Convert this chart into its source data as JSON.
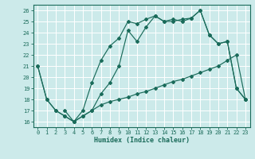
{
  "xlabel": "Humidex (Indice chaleur)",
  "bg_color": "#cceaea",
  "grid_color": "#ffffff",
  "line_color": "#1a6b5a",
  "xlim": [
    -0.5,
    23.5
  ],
  "ylim": [
    15.5,
    26.5
  ],
  "xticks": [
    0,
    1,
    2,
    3,
    4,
    5,
    6,
    7,
    8,
    9,
    10,
    11,
    12,
    13,
    14,
    15,
    16,
    17,
    18,
    19,
    20,
    21,
    22,
    23
  ],
  "yticks": [
    16,
    17,
    18,
    19,
    20,
    21,
    22,
    23,
    24,
    25,
    26
  ],
  "line1_x": [
    0,
    1,
    2,
    3,
    4,
    5,
    6,
    7,
    8,
    9,
    10,
    11,
    12,
    13,
    14,
    15,
    16,
    17,
    18,
    19,
    20,
    21,
    22,
    23
  ],
  "line1_y": [
    21,
    18,
    17,
    16.5,
    16,
    16.5,
    17,
    17.5,
    17.8,
    18,
    18.2,
    18.5,
    18.7,
    19,
    19.3,
    19.6,
    19.8,
    20.1,
    20.4,
    20.7,
    21.0,
    21.5,
    22.0,
    18
  ],
  "line2_x": [
    0,
    1,
    2,
    3,
    4,
    5,
    6,
    7,
    8,
    9,
    10,
    11,
    12,
    13,
    14,
    15,
    16,
    17,
    18,
    19,
    20,
    21,
    22,
    23
  ],
  "line2_y": [
    21,
    18,
    17,
    16.5,
    16,
    17,
    19.5,
    21.5,
    22.8,
    23.5,
    25,
    24.8,
    25.2,
    25.5,
    25,
    25,
    25.2,
    25.3,
    26,
    23.8,
    23,
    23.2,
    19,
    18
  ],
  "line3_x": [
    3,
    4,
    5,
    6,
    7,
    8,
    9,
    10,
    11,
    12,
    13,
    14,
    15,
    16,
    17,
    18,
    19,
    20,
    21,
    22,
    23
  ],
  "line3_y": [
    17,
    16,
    16.5,
    17,
    18.5,
    19.5,
    21,
    24.2,
    23.2,
    24.5,
    25.5,
    25,
    25.2,
    25.0,
    25.3,
    26,
    23.8,
    23,
    23.2,
    19,
    18
  ]
}
